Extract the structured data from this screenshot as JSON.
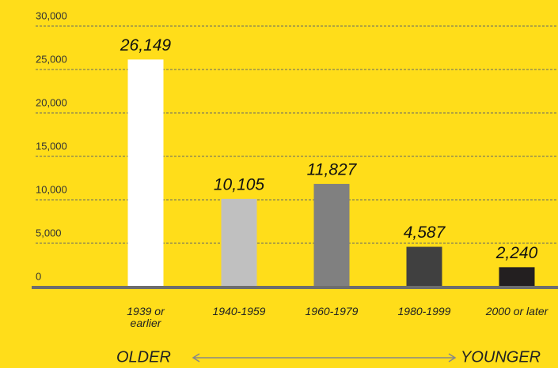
{
  "chart_data": {
    "type": "bar",
    "categories": [
      "1939 or\nearlier",
      "1940-1959",
      "1960-1979",
      "1980-1999",
      "2000 or later"
    ],
    "values": [
      26149,
      10105,
      11827,
      4587,
      2240
    ],
    "value_labels": [
      "26,149",
      "10,105",
      "11,827",
      "4,587",
      "2,240"
    ],
    "colors": [
      "#ffffff",
      "#c0c0c0",
      "#808080",
      "#404040",
      "#231f20"
    ],
    "ylim": [
      0,
      30000
    ],
    "yticks": [
      0,
      {
        "value": 5000,
        "label": "5,000"
      },
      {
        "value": 10000,
        "label": "10,000"
      },
      {
        "value": 15000,
        "label": "15,000"
      },
      {
        "value": 20000,
        "label": "20,000"
      },
      {
        "value": 25000,
        "label": "25,000"
      },
      {
        "value": 30000,
        "label": "30,000"
      }
    ],
    "grid": true,
    "annotations": [
      "OLDER",
      "YOUNGER"
    ]
  }
}
